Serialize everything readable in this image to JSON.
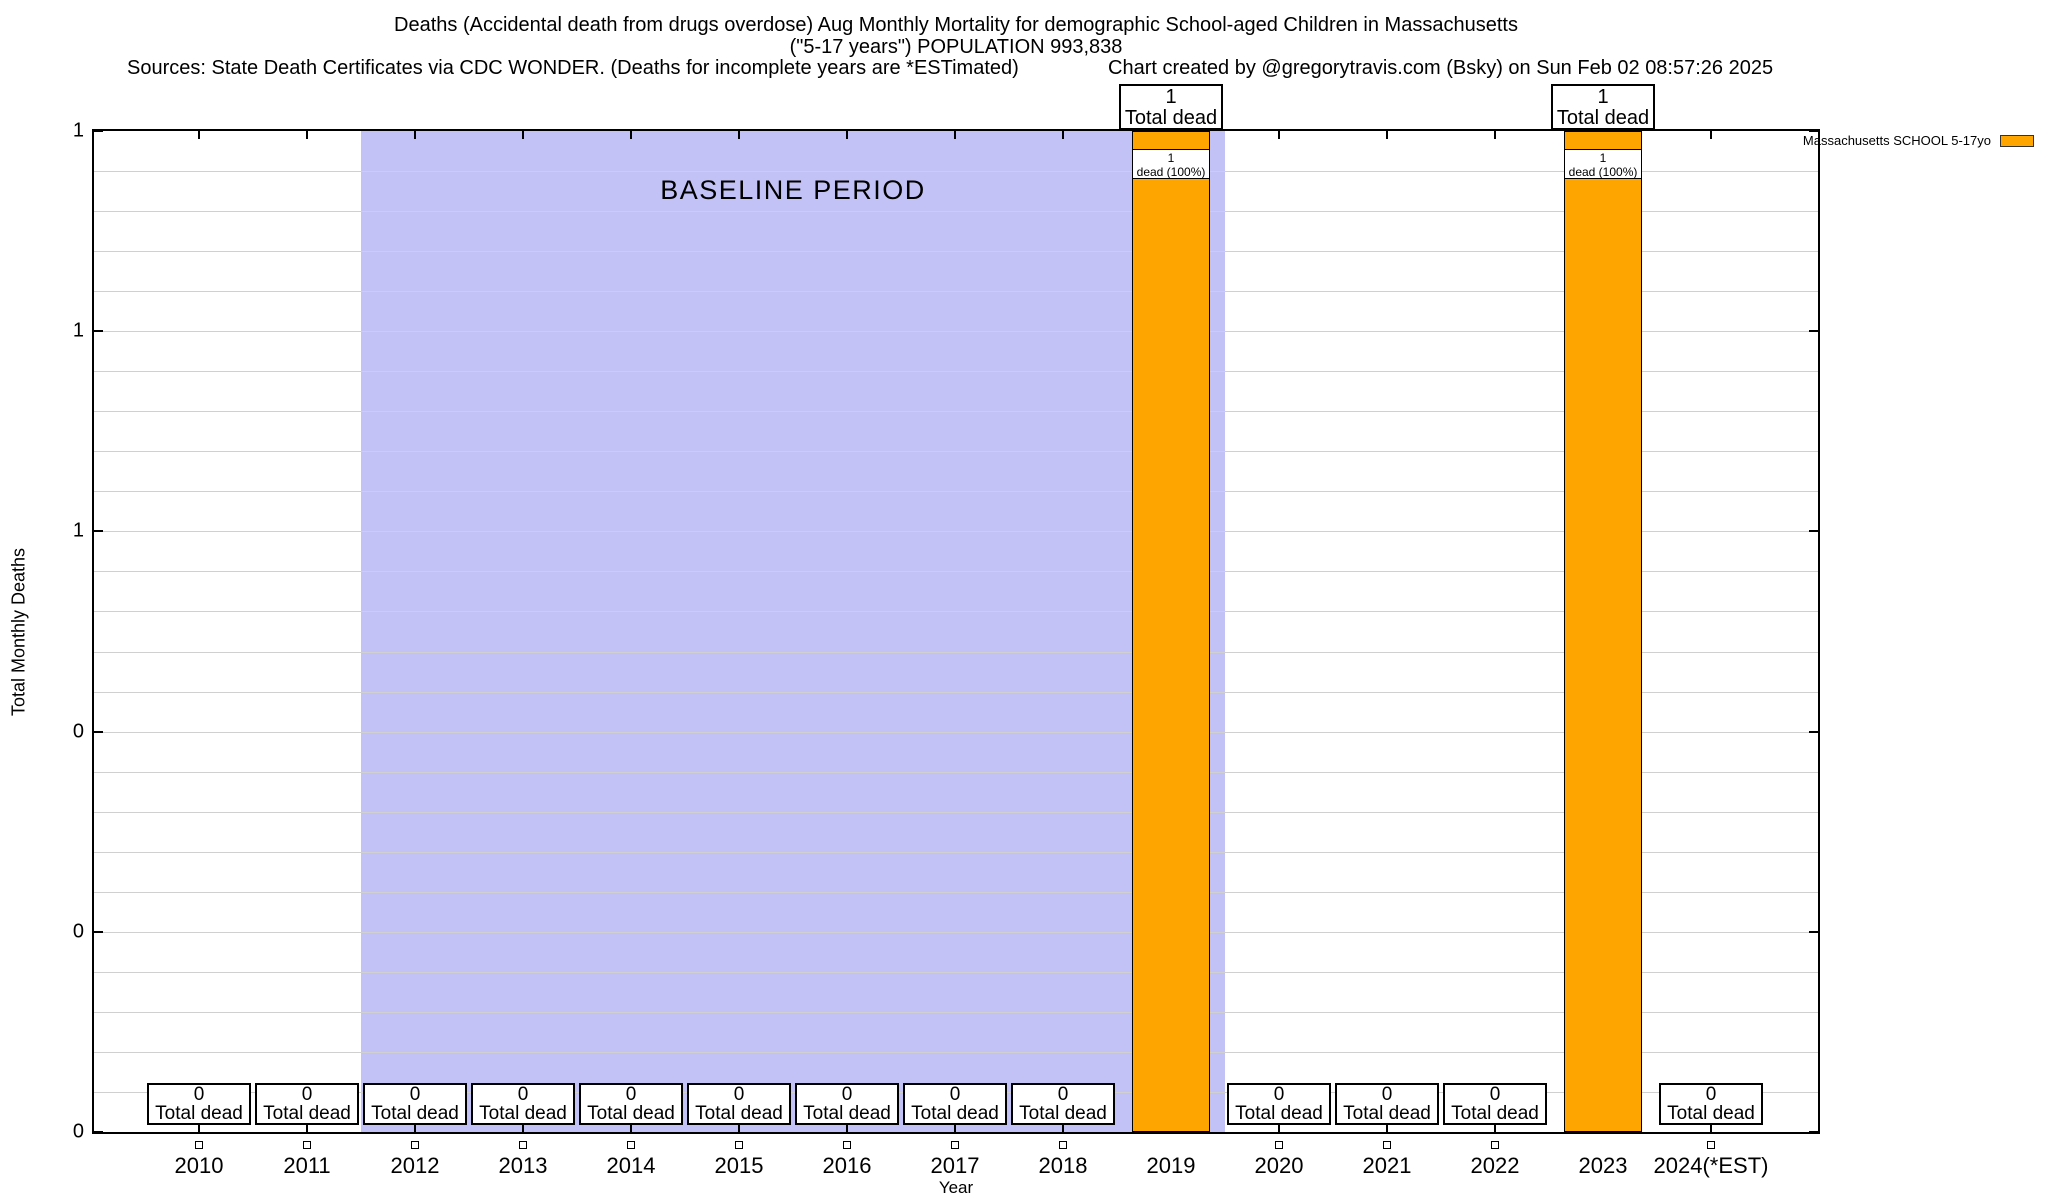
{
  "header": {
    "title_line1": "Deaths (Accidental death from drugs overdose) Aug Monthly Mortality for demographic School-aged Children in Massachusetts",
    "title_line2": "(\"5-17 years\") POPULATION 993,838",
    "sources": "Sources: State Death Certificates via CDC WONDER. (Deaths for incomplete years are *ESTimated)",
    "credit": "Chart created by @gregorytravis.com (Bsky) on Sun Feb 02 08:57:26 2025"
  },
  "legend": {
    "label": "Massachusetts SCHOOL 5-17yo",
    "color": "#FFA500"
  },
  "baseline": {
    "label": "BASELINE PERIOD",
    "start_year": "2012",
    "end_year": "2019",
    "color": "#C2C2F6"
  },
  "labels": {
    "total_dead": "Total dead",
    "bar_caption": "dead (100%)"
  },
  "y_axis": {
    "title": "Total Monthly Deaths",
    "ticks": [
      {
        "value": 0.0,
        "label": "0"
      },
      {
        "value": 0.2,
        "label": "0"
      },
      {
        "value": 0.4,
        "label": "0"
      },
      {
        "value": 0.6,
        "label": "1"
      },
      {
        "value": 0.8,
        "label": "1"
      },
      {
        "value": 1.0,
        "label": "1"
      }
    ]
  },
  "x_axis": {
    "title": "Year"
  },
  "chart_data": {
    "type": "bar",
    "title": "Deaths (Accidental death from drugs overdose) Aug Monthly Mortality for demographic School-aged Children in Massachusetts (\"5-17 years\") POPULATION 993,838",
    "xlabel": "Year",
    "ylabel": "Total Monthly Deaths",
    "ylim": [
      0,
      1
    ],
    "grid": true,
    "legend_position": "outside-top-right",
    "bar_color": "#FFA500",
    "baseline_shading_color": "#C2C2F6",
    "baseline_period_years": [
      "2012",
      "2013",
      "2014",
      "2015",
      "2016",
      "2017",
      "2018",
      "2019"
    ],
    "categories": [
      "2010",
      "2011",
      "2012",
      "2013",
      "2014",
      "2015",
      "2016",
      "2017",
      "2018",
      "2019",
      "2020",
      "2021",
      "2022",
      "2023",
      "2024(*EST)"
    ],
    "series": [
      {
        "name": "Massachusetts SCHOOL 5-17yo",
        "values": [
          0,
          0,
          0,
          0,
          0,
          0,
          0,
          0,
          0,
          1,
          0,
          0,
          0,
          1,
          0
        ]
      }
    ],
    "annotations": {
      "zero_year_box_lines": [
        "0",
        "Total dead"
      ],
      "bar_top_box_lines": [
        "1",
        "Total dead"
      ],
      "bar_inner_box_lines": [
        "1",
        "dead (100%)"
      ]
    }
  }
}
